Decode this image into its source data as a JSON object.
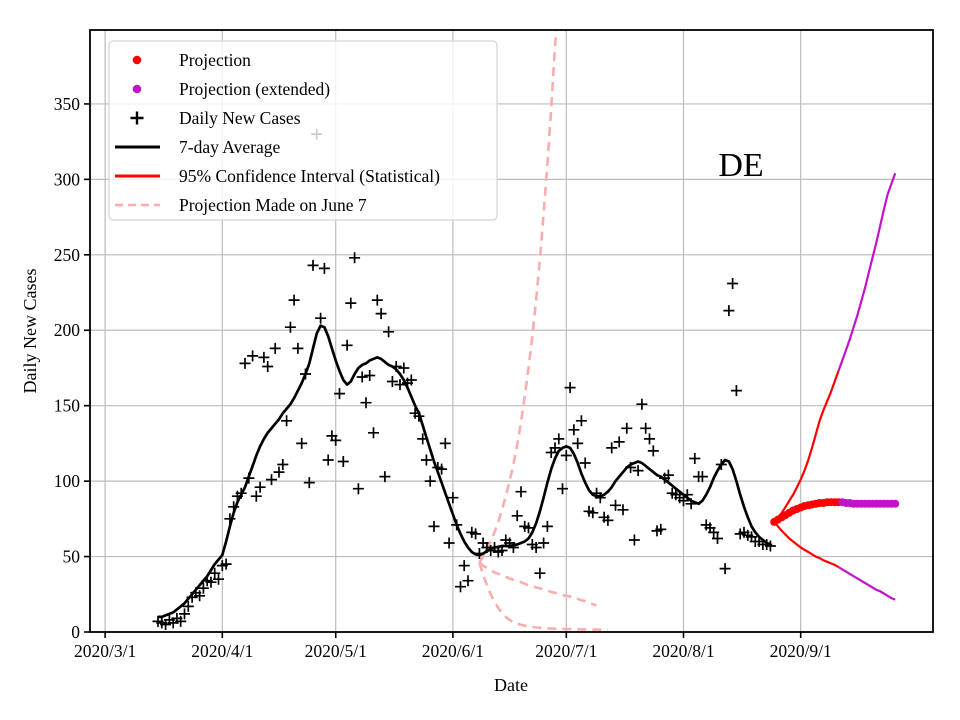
{
  "annotation": {
    "state_label": "DE"
  },
  "axes": {
    "xlabel": "Date",
    "ylabel": "Daily New Cases"
  },
  "colors": {
    "red": "#ff0000",
    "magenta": "#c313c9",
    "pink_dashed": "#fbadad",
    "black": "#000000",
    "grid": "#bcbcbc",
    "spine": "#000000",
    "legend_border": "#d5d5d5",
    "hidden_marker_gray": "#aaaaaa"
  },
  "legend": {
    "items": [
      {
        "marker": "dot",
        "color": "#ff0000",
        "label": "Projection"
      },
      {
        "marker": "dot",
        "color": "#c313c9",
        "label": "Projection (extended)"
      },
      {
        "marker": "plus",
        "color": "#000000",
        "label": "Daily New Cases"
      },
      {
        "marker": "line",
        "color": "#000000",
        "label": "7-day Average"
      },
      {
        "marker": "line",
        "color": "#ff0000",
        "label": "95% Confidence Interval (Statistical)"
      },
      {
        "marker": "dashed",
        "color": "#fbadad",
        "label": "Projection Made on June 7"
      }
    ]
  },
  "chart_data": {
    "type": "line",
    "title": "",
    "xlabel": "Date",
    "ylabel": "Daily New Cases",
    "grid": true,
    "legend_position": "upper left",
    "xlim": [
      "2020-02-26",
      "2020-10-06"
    ],
    "ylim": [
      0,
      399
    ],
    "xticks": [
      {
        "date": "2020-03-01",
        "label": "2020/3/1"
      },
      {
        "date": "2020-04-01",
        "label": "2020/4/1"
      },
      {
        "date": "2020-05-01",
        "label": "2020/5/1"
      },
      {
        "date": "2020-06-01",
        "label": "2020/6/1"
      },
      {
        "date": "2020-07-01",
        "label": "2020/7/1"
      },
      {
        "date": "2020-08-01",
        "label": "2020/8/1"
      },
      {
        "date": "2020-09-01",
        "label": "2020/9/1"
      }
    ],
    "yticks": [
      {
        "value": 0,
        "label": "0"
      },
      {
        "value": 50,
        "label": "50"
      },
      {
        "value": 100,
        "label": "100"
      },
      {
        "value": 150,
        "label": "150"
      },
      {
        "value": 200,
        "label": "200"
      },
      {
        "value": 250,
        "label": "250"
      },
      {
        "value": 300,
        "label": "300"
      },
      {
        "value": 350,
        "label": "350"
      }
    ],
    "series": {
      "daily_new_cases": {
        "name": "Daily New Cases",
        "style": "plus-scatter",
        "start": "2020-03-15",
        "values": [
          7,
          6,
          5,
          8,
          6,
          9,
          7,
          12,
          17,
          23,
          26,
          24,
          29,
          34,
          33,
          39,
          35,
          44,
          45,
          75,
          83,
          90,
          92,
          178,
          102,
          183,
          90,
          96,
          182,
          176,
          101,
          188,
          106,
          111,
          140,
          202,
          220,
          188,
          125,
          171,
          99,
          243,
          330,
          208,
          241,
          114,
          130,
          127,
          158,
          113,
          190,
          218,
          248,
          95,
          169,
          152,
          170,
          132,
          220,
          211,
          103,
          199,
          166,
          176,
          164,
          175,
          165,
          167,
          145,
          143,
          128,
          114,
          100,
          70,
          109,
          108,
          125,
          59,
          89,
          71,
          30,
          44,
          34,
          66,
          65,
          52,
          59,
          56,
          54,
          56,
          53,
          54,
          61,
          59,
          56,
          77,
          93,
          70,
          69,
          58,
          56,
          39,
          59,
          70,
          119,
          122,
          128,
          95,
          117,
          162,
          134,
          125,
          140,
          112,
          80,
          79,
          92,
          89,
          76,
          74,
          122,
          84,
          126,
          81,
          135,
          109,
          61,
          107,
          151,
          135,
          128,
          120,
          67,
          68,
          102,
          104,
          92,
          91,
          89,
          87,
          91,
          85,
          115,
          103,
          103,
          71,
          69,
          66,
          62,
          111,
          42,
          213,
          231,
          160,
          65,
          66,
          64,
          63,
          60,
          60,
          58,
          58,
          57
        ]
      },
      "seven_day_average": {
        "name": "7-day Average",
        "style": "solid-line",
        "start": "2020-03-15",
        "values": [
          10,
          10,
          11,
          12,
          13,
          15,
          17,
          19,
          22,
          25,
          28,
          31,
          34,
          37,
          41,
          45,
          48,
          51,
          60,
          70,
          79,
          86,
          91,
          96,
          103,
          110,
          117,
          123,
          128,
          132,
          135,
          138,
          141,
          145,
          148,
          151,
          155,
          160,
          165,
          171,
          178,
          188,
          198,
          203,
          202,
          196,
          188,
          180,
          173,
          167,
          164,
          166,
          171,
          175,
          177,
          178,
          180,
          181,
          182,
          181,
          179,
          177,
          176,
          174,
          171,
          167,
          162,
          156,
          150,
          145,
          137,
          129,
          121,
          113,
          106,
          99,
          92,
          85,
          78,
          71,
          65,
          60,
          56,
          53,
          51.5,
          51,
          52,
          53.5,
          55,
          56,
          56.5,
          57,
          57,
          57,
          57.5,
          58,
          59,
          60,
          62,
          66,
          72,
          80,
          89,
          99,
          108,
          115,
          120,
          122,
          123,
          122,
          118,
          112,
          105,
          99,
          94,
          91,
          90,
          90,
          91,
          93,
          96,
          100,
          103,
          106,
          109,
          111,
          112,
          113,
          112,
          110,
          108,
          106,
          104,
          103,
          101,
          99,
          97,
          95,
          93,
          91,
          89,
          87,
          86,
          85,
          87,
          91,
          96,
          102,
          107,
          111,
          114,
          113,
          108,
          100,
          91,
          83,
          76,
          70,
          66,
          63,
          61,
          59,
          58
        ]
      },
      "june7_projection": {
        "name": "Projection Made on June 7",
        "style": "dashed-line",
        "upper": {
          "start": "2020-06-08",
          "values": [
            46,
            50,
            55,
            60,
            66,
            73,
            81,
            90,
            100,
            111,
            124,
            139,
            156,
            175,
            196,
            220,
            247,
            277,
            310,
            347,
            388,
            420
          ]
        },
        "center": {
          "start": "2020-06-08",
          "values": [
            46,
            44,
            42.5,
            41,
            39.5,
            38.5,
            37.5,
            36.5,
            35.5,
            34.5,
            33.5,
            33,
            32,
            31,
            30.5,
            29.5,
            29,
            28,
            27.5,
            26.5,
            26,
            25.5,
            24.5,
            24,
            23.5,
            22.5,
            22,
            21,
            20.5,
            19.5,
            18.5,
            17.5
          ]
        },
        "lower": {
          "start": "2020-06-08",
          "values": [
            46,
            38,
            31,
            25,
            20,
            16,
            12.5,
            10,
            8,
            6.5,
            5.5,
            4.8,
            4.2,
            3.7,
            3.3,
            3,
            2.8,
            2.6,
            2.4,
            2.3,
            2.2,
            2.1,
            2,
            2,
            1.9,
            1.9,
            1.8,
            1.8,
            1.7,
            1.7,
            1.6,
            1.6,
            1.5,
            1.5,
            1.4
          ]
        }
      },
      "projection": {
        "name": "Projection",
        "style": "dot-markers",
        "center_red": {
          "start": "2020-08-25",
          "values": [
            73,
            74.5,
            76,
            77.5,
            79,
            80.5,
            81.5,
            82.5,
            83.5,
            84,
            84.5,
            85,
            85.5,
            85.5,
            86,
            86,
            86,
            86
          ]
        },
        "center_magenta": {
          "start": "2020-09-12",
          "values": [
            86,
            85.5,
            85.5,
            85,
            85,
            85,
            85,
            85,
            85,
            85,
            85,
            85,
            85,
            85,
            85
          ]
        }
      },
      "confidence_interval_95": {
        "name": "95% Confidence Interval (Statistical)",
        "style": "solid-line",
        "upper_red": {
          "start": "2020-08-25",
          "values": [
            73,
            76,
            79,
            83,
            87,
            91,
            96,
            101,
            107,
            114,
            122,
            131,
            140,
            147,
            153,
            159,
            166,
            173
          ]
        },
        "upper_magenta": {
          "start": "2020-09-11",
          "values": [
            173,
            180,
            187,
            194,
            202,
            210,
            219,
            228,
            238,
            248,
            258,
            269,
            280,
            290,
            297,
            304
          ]
        },
        "lower_red": {
          "start": "2020-08-25",
          "values": [
            73,
            70,
            67,
            64.5,
            62,
            60,
            58,
            56,
            54.5,
            53,
            51.5,
            50,
            49,
            47.5,
            46.5,
            45.5,
            44.5,
            43
          ]
        },
        "lower_magenta": {
          "start": "2020-09-11",
          "values": [
            43,
            41.5,
            40,
            38.5,
            37,
            35.5,
            34,
            32.5,
            31,
            29.5,
            28,
            27,
            25.5,
            24,
            22.5,
            21.5
          ]
        }
      }
    }
  }
}
